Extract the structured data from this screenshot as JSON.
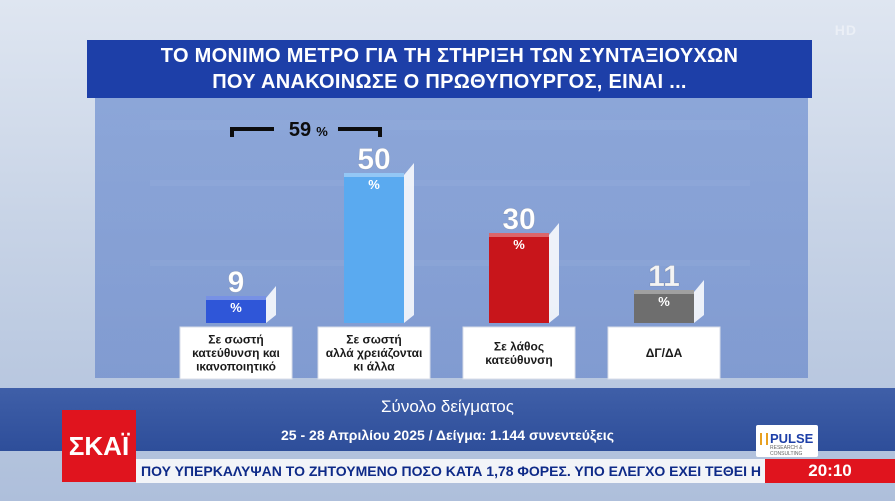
{
  "hd_label": "HD",
  "title_line1": "ΤΟ ΜΟΝΙΜΟ ΜΕΤΡΟ ΓΙΑ ΤΗ ΣΤΗΡΙΞΗ ΤΩΝ ΣΥΝΤΑΞΙΟΥΧΩΝ",
  "title_line2": "ΠΟΥ ΑΝΑΚΟΙΝΩΣΕ Ο ΠΡΩΘΥΠΟΥΡΓΟΣ, ΕΙΝΑΙ ...",
  "chart_data": {
    "type": "bar",
    "categories": [
      "Σε σωστή κατεύθυνση και ικανοποιητικό",
      "Σε σωστή αλλά χρειάζονται κι άλλα",
      "Σε λάθος κατεύθυνση",
      "ΔΓ/ΔΑ"
    ],
    "category_lines": [
      [
        "Σε σωστή",
        "κατεύθυνση και",
        "ικανοποιητικό"
      ],
      [
        "Σε σωστή",
        "αλλά χρειάζονται",
        "κι άλλα"
      ],
      [
        "Σε λάθος",
        "κατεύθυνση"
      ],
      [
        "ΔΓ/ΔΑ"
      ]
    ],
    "values": [
      9,
      50,
      30,
      11
    ],
    "unit": "%",
    "colors": [
      "#2f56d8",
      "#5aaaf0",
      "#c8151b",
      "#6e6e6e"
    ],
    "ylim": [
      0,
      55
    ],
    "bracket": {
      "label": "59",
      "unit": "%",
      "spans": [
        0,
        1
      ]
    }
  },
  "sample_label": "Σύνολο δείγματος",
  "sample_info": "25 - 28 Απριλίου 2025 / Δείγμα: 1.144 συνεντεύξεις",
  "logo_text": "ΣΚΑΪ",
  "pulse_text": "PULSE",
  "pulse_sub": "RESEARCH & CONSULTING",
  "ticker_text": "ΠΟΥ ΥΠΕΡΚΑΛΥΨΑΝ ΤΟ ΖΗΤΟΥΜΕΝΟ ΠΟΣΟ ΚΑΤΑ 1,78 ΦΟΡΕΣ.     ΥΠΟ ΕΛΕΓΧΟ ΕΧΕΙ ΤΕΘΕΙ Η Φ",
  "clock": "20:10"
}
